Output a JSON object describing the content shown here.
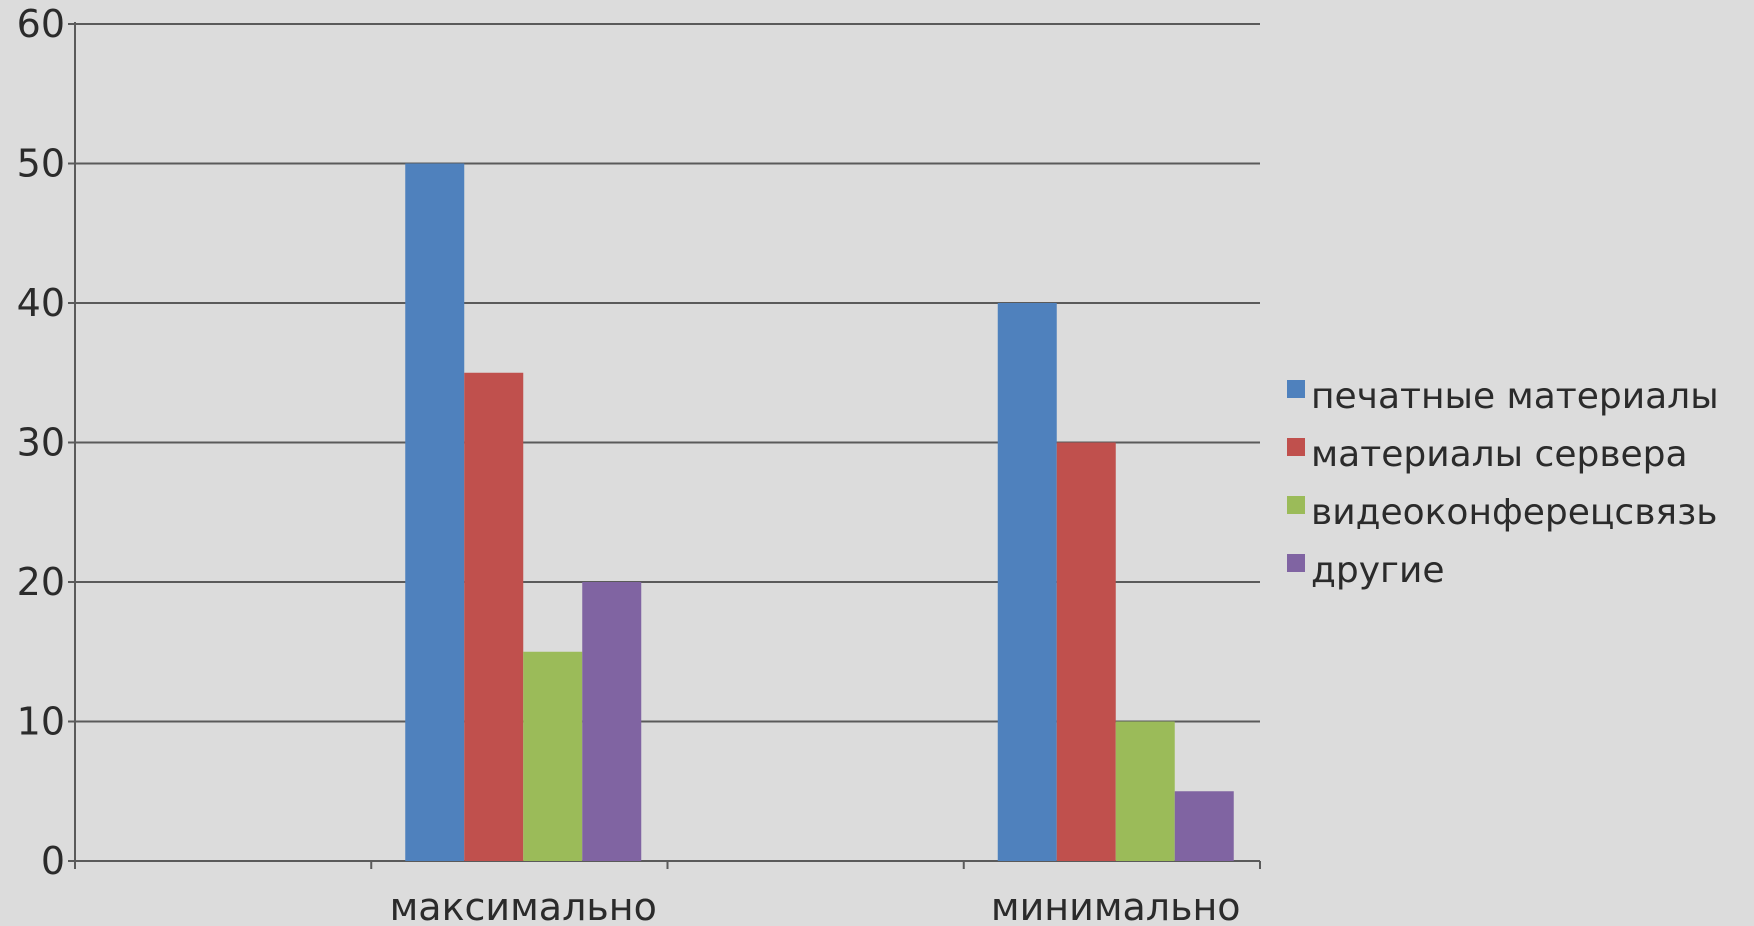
{
  "chart_data": {
    "type": "bar",
    "categories": [
      "максимально",
      "минимально"
    ],
    "series": [
      {
        "name": "печатные материалы",
        "values": [
          50,
          40
        ],
        "color": "#4f81bd"
      },
      {
        "name": "материалы сервера",
        "values": [
          35,
          30
        ],
        "color": "#c0504d"
      },
      {
        "name": "видеоконферецсвязь",
        "values": [
          15,
          10
        ],
        "color": "#9bbb59"
      },
      {
        "name": "другие",
        "values": [
          20,
          5
        ],
        "color": "#8064a2"
      }
    ],
    "yticks": [
      "0",
      "10",
      "20",
      "30",
      "40",
      "50",
      "60"
    ],
    "ylim": [
      0,
      60
    ],
    "grid": true,
    "legend": "right",
    "title": "",
    "xlabel": "",
    "ylabel": ""
  }
}
